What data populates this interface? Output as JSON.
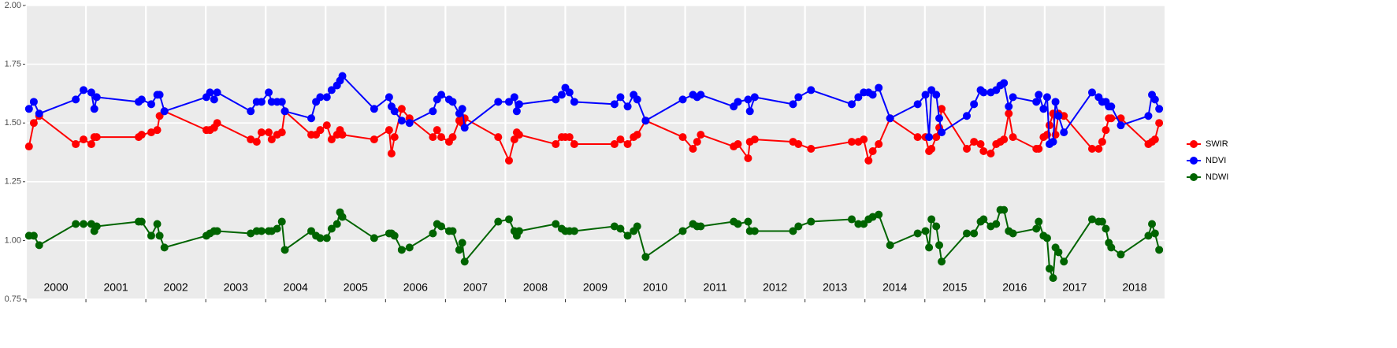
{
  "chart_data": {
    "type": "line",
    "xlim": [
      2000,
      2019
    ],
    "xticks": [
      2000,
      2001,
      2002,
      2003,
      2004,
      2005,
      2006,
      2007,
      2008,
      2009,
      2010,
      2011,
      2012,
      2013,
      2014,
      2015,
      2016,
      2017,
      2018
    ],
    "year_labels": [
      "2000",
      "2001",
      "2002",
      "2003",
      "2004",
      "2005",
      "2006",
      "2007",
      "2008",
      "2009",
      "2010",
      "2011",
      "2012",
      "2013",
      "2014",
      "2015",
      "2016",
      "2017",
      "2018"
    ],
    "ylim": [
      0.75,
      2.0
    ],
    "yticks": [
      {
        "value": 0.75,
        "label": "0.75"
      },
      {
        "value": 1.0,
        "label": "1.00"
      },
      {
        "value": 1.25,
        "label": "1.25"
      },
      {
        "value": 1.5,
        "label": "1.50"
      },
      {
        "value": 1.75,
        "label": "1.75"
      },
      {
        "value": 2.0,
        "label": "2.00"
      }
    ],
    "grid": true,
    "legend": "right",
    "x": [
      2000.05,
      2000.13,
      2000.22,
      2000.83,
      2000.96,
      2001.09,
      2001.14,
      2001.18,
      2001.88,
      2001.93,
      2002.09,
      2002.19,
      2002.23,
      2002.31,
      2003.01,
      2003.07,
      2003.14,
      2003.19,
      2003.75,
      2003.85,
      2003.93,
      2004.05,
      2004.1,
      2004.19,
      2004.27,
      2004.32,
      2004.76,
      2004.84,
      2004.91,
      2005.02,
      2005.1,
      2005.19,
      2005.24,
      2005.28,
      2005.81,
      2006.06,
      2006.1,
      2006.15,
      2006.27,
      2006.4,
      2006.79,
      2006.86,
      2006.93,
      2007.06,
      2007.12,
      2007.23,
      2007.28,
      2007.32,
      2007.88,
      2008.06,
      2008.15,
      2008.19,
      2008.23,
      2008.84,
      2008.94,
      2009.0,
      2009.07,
      2009.15,
      2009.82,
      2009.92,
      2010.04,
      2010.14,
      2010.2,
      2010.34,
      2010.96,
      2011.13,
      2011.2,
      2011.26,
      2011.81,
      2011.88,
      2012.05,
      2012.08,
      2012.16,
      2012.8,
      2012.89,
      2013.1,
      2013.78,
      2013.89,
      2013.98,
      2014.06,
      2014.13,
      2014.23,
      2014.42,
      2014.88,
      2015.01,
      2015.07,
      2015.11,
      2015.19,
      2015.24,
      2015.28,
      2015.7,
      2015.82,
      2015.93,
      2015.98,
      2016.1,
      2016.19,
      2016.26,
      2016.32,
      2016.4,
      2016.47,
      2016.86,
      2016.9,
      2016.98,
      2017.04,
      2017.08,
      2017.14,
      2017.18,
      2017.23,
      2017.32,
      2017.79,
      2017.9,
      2017.96,
      2018.02,
      2018.07,
      2018.11,
      2018.27,
      2018.73,
      2018.79,
      2018.84,
      2018.91
    ],
    "series": [
      {
        "name": "SWIR",
        "color": "#ff0000",
        "values": [
          1.4,
          1.5,
          1.53,
          1.41,
          1.43,
          1.41,
          1.44,
          1.44,
          1.44,
          1.45,
          1.46,
          1.47,
          1.53,
          1.55,
          1.47,
          1.47,
          1.48,
          1.5,
          1.43,
          1.42,
          1.46,
          1.46,
          1.43,
          1.45,
          1.46,
          1.55,
          1.45,
          1.45,
          1.47,
          1.49,
          1.43,
          1.45,
          1.47,
          1.45,
          1.43,
          1.47,
          1.37,
          1.44,
          1.56,
          1.52,
          1.44,
          1.47,
          1.44,
          1.42,
          1.44,
          1.51,
          1.5,
          1.52,
          1.44,
          1.34,
          1.43,
          1.46,
          1.45,
          1.41,
          1.44,
          1.44,
          1.44,
          1.41,
          1.41,
          1.43,
          1.41,
          1.44,
          1.45,
          1.51,
          1.44,
          1.39,
          1.42,
          1.45,
          1.4,
          1.41,
          1.35,
          1.42,
          1.43,
          1.42,
          1.41,
          1.39,
          1.42,
          1.42,
          1.43,
          1.34,
          1.38,
          1.41,
          1.52,
          1.44,
          1.44,
          1.38,
          1.39,
          1.44,
          1.48,
          1.56,
          1.39,
          1.42,
          1.41,
          1.38,
          1.37,
          1.41,
          1.42,
          1.43,
          1.54,
          1.44,
          1.39,
          1.39,
          1.44,
          1.45,
          1.49,
          1.54,
          1.45,
          1.54,
          1.53,
          1.39,
          1.39,
          1.42,
          1.47,
          1.52,
          1.52,
          1.52,
          1.41,
          1.42,
          1.43,
          1.5
        ]
      },
      {
        "name": "NDVI",
        "color": "#0000ff",
        "values": [
          1.56,
          1.59,
          1.54,
          1.6,
          1.64,
          1.63,
          1.56,
          1.61,
          1.59,
          1.6,
          1.58,
          1.62,
          1.62,
          1.55,
          1.61,
          1.63,
          1.6,
          1.63,
          1.55,
          1.59,
          1.59,
          1.63,
          1.59,
          1.59,
          1.59,
          1.55,
          1.52,
          1.59,
          1.61,
          1.61,
          1.64,
          1.66,
          1.68,
          1.7,
          1.56,
          1.61,
          1.57,
          1.55,
          1.51,
          1.5,
          1.55,
          1.6,
          1.62,
          1.6,
          1.59,
          1.54,
          1.56,
          1.48,
          1.59,
          1.59,
          1.61,
          1.55,
          1.58,
          1.6,
          1.62,
          1.65,
          1.63,
          1.59,
          1.58,
          1.61,
          1.57,
          1.62,
          1.6,
          1.51,
          1.6,
          1.62,
          1.61,
          1.62,
          1.57,
          1.59,
          1.6,
          1.55,
          1.61,
          1.58,
          1.61,
          1.64,
          1.58,
          1.61,
          1.63,
          1.63,
          1.62,
          1.65,
          1.52,
          1.58,
          1.62,
          1.44,
          1.64,
          1.62,
          1.52,
          1.46,
          1.53,
          1.58,
          1.64,
          1.63,
          1.63,
          1.64,
          1.66,
          1.67,
          1.57,
          1.61,
          1.59,
          1.62,
          1.56,
          1.61,
          1.41,
          1.42,
          1.59,
          1.53,
          1.46,
          1.63,
          1.61,
          1.59,
          1.59,
          1.57,
          1.57,
          1.49,
          1.53,
          1.62,
          1.6,
          1.56
        ]
      },
      {
        "name": "NDWI",
        "color": "#006400",
        "values": [
          1.02,
          1.02,
          0.98,
          1.07,
          1.07,
          1.07,
          1.04,
          1.06,
          1.08,
          1.08,
          1.02,
          1.07,
          1.02,
          0.97,
          1.02,
          1.03,
          1.04,
          1.04,
          1.03,
          1.04,
          1.04,
          1.04,
          1.04,
          1.05,
          1.08,
          0.96,
          1.04,
          1.02,
          1.01,
          1.01,
          1.05,
          1.07,
          1.12,
          1.1,
          1.01,
          1.03,
          1.03,
          1.02,
          0.96,
          0.97,
          1.03,
          1.07,
          1.06,
          1.04,
          1.04,
          0.96,
          0.99,
          0.91,
          1.08,
          1.09,
          1.04,
          1.02,
          1.04,
          1.07,
          1.05,
          1.04,
          1.04,
          1.04,
          1.06,
          1.05,
          1.02,
          1.04,
          1.06,
          0.93,
          1.04,
          1.07,
          1.06,
          1.06,
          1.08,
          1.07,
          1.08,
          1.04,
          1.04,
          1.04,
          1.06,
          1.08,
          1.09,
          1.07,
          1.07,
          1.09,
          1.1,
          1.11,
          0.98,
          1.03,
          1.04,
          0.97,
          1.09,
          1.06,
          0.98,
          0.91,
          1.03,
          1.03,
          1.08,
          1.09,
          1.06,
          1.07,
          1.13,
          1.13,
          1.04,
          1.03,
          1.05,
          1.08,
          1.02,
          1.01,
          0.88,
          0.84,
          0.97,
          0.95,
          0.91,
          1.09,
          1.08,
          1.08,
          1.05,
          0.99,
          0.97,
          0.94,
          1.02,
          1.07,
          1.03,
          0.96
        ]
      }
    ]
  }
}
